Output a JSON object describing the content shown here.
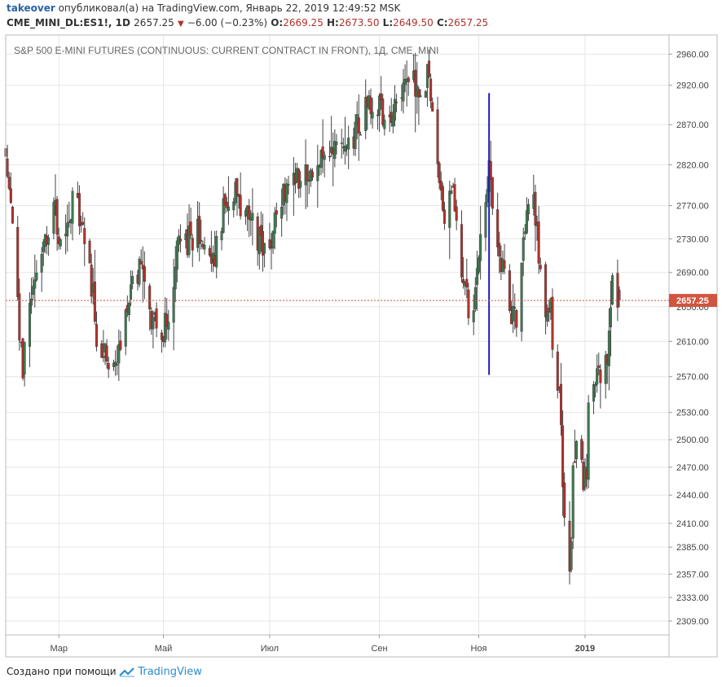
{
  "header": {
    "author": "takeover",
    "published_text": "опубликовал(а) на TradingView.com, Январь 22, 2019 12:49:52 MSK",
    "symbol": "CME_MINI_DL:ES1!, 1D",
    "last": "2657.25",
    "change": "−6.00 (−0.23%)",
    "open_label": "O:",
    "open": "2669.25",
    "high_label": "H:",
    "high": "2673.50",
    "low_label": "L:",
    "low": "2649.50",
    "close_label": "C:",
    "close": "2657.25"
  },
  "footer": {
    "created_with": "Создано при помощи",
    "brand": "TradingView"
  },
  "colors": {
    "up": "#3d7a4f",
    "down": "#b2322a",
    "marker_line": "#1f1fb4",
    "price_tag": "#d0553f",
    "grid": "#e6e6e6"
  },
  "chart_data": {
    "type": "candlestick",
    "title": "S&P 500 E-MINI FUTURES (CONTINUOUS: CURRENT CONTRACT IN FRONT), 1Д, CME_MINI",
    "y_ticks": [
      "2960.00",
      "2920.00",
      "2870.00",
      "2820.00",
      "2770.00",
      "2730.00",
      "2690.00",
      "2650.00",
      "2610.00",
      "2570.00",
      "2530.00",
      "2500.00",
      "2470.00",
      "2440.00",
      "2410.00",
      "2385.00",
      "2357.00",
      "2333.00",
      "2309.00"
    ],
    "x_ticks": [
      "Мар",
      "Май",
      "Июл",
      "Сен",
      "Ноя",
      "2019"
    ],
    "current_price": "2657.25",
    "ylim": [
      2295,
      2985
    ],
    "scale": "log",
    "grid": true,
    "vertical_marker_date": "2018-11-07",
    "vertical_marker_range": [
      2572,
      2910
    ],
    "close_points": [
      [
        "2018-01-29",
        2830
      ],
      [
        "2018-02-02",
        2760
      ],
      [
        "2018-02-05",
        2650
      ],
      [
        "2018-02-08",
        2580
      ],
      [
        "2018-02-12",
        2650
      ],
      [
        "2018-02-20",
        2715
      ],
      [
        "2018-02-26",
        2780
      ],
      [
        "2018-03-01",
        2715
      ],
      [
        "2018-03-09",
        2780
      ],
      [
        "2018-03-13",
        2760
      ],
      [
        "2018-03-22",
        2650
      ],
      [
        "2018-03-23",
        2595
      ],
      [
        "2018-04-02",
        2585
      ],
      [
        "2018-04-09",
        2640
      ],
      [
        "2018-04-18",
        2710
      ],
      [
        "2018-04-24",
        2640
      ],
      [
        "2018-05-02",
        2625
      ],
      [
        "2018-05-10",
        2725
      ],
      [
        "2018-05-21",
        2735
      ],
      [
        "2018-05-29",
        2690
      ],
      [
        "2018-06-06",
        2770
      ],
      [
        "2018-06-12",
        2785
      ],
      [
        "2018-06-19",
        2760
      ],
      [
        "2018-06-28",
        2715
      ],
      [
        "2018-07-02",
        2725
      ],
      [
        "2018-07-09",
        2785
      ],
      [
        "2018-07-19",
        2805
      ],
      [
        "2018-07-27",
        2820
      ],
      [
        "2018-08-10",
        2835
      ],
      [
        "2018-08-13",
        2830
      ],
      [
        "2018-08-21",
        2860
      ],
      [
        "2018-08-31",
        2905
      ],
      [
        "2018-09-07",
        2875
      ],
      [
        "2018-09-14",
        2905
      ],
      [
        "2018-09-20",
        2935
      ],
      [
        "2018-09-28",
        2915
      ],
      [
        "2018-10-03",
        2930
      ],
      [
        "2018-10-05",
        2890
      ],
      [
        "2018-10-10",
        2790
      ],
      [
        "2018-10-11",
        2760
      ],
      [
        "2018-10-17",
        2800
      ],
      [
        "2018-10-24",
        2660
      ],
      [
        "2018-10-29",
        2640
      ],
      [
        "2018-11-02",
        2720
      ],
      [
        "2018-11-07",
        2815
      ],
      [
        "2018-11-12",
        2730
      ],
      [
        "2018-11-20",
        2640
      ],
      [
        "2018-11-23",
        2630
      ],
      [
        "2018-11-28",
        2745
      ],
      [
        "2018-12-03",
        2795
      ],
      [
        "2018-12-06",
        2700
      ],
      [
        "2018-12-10",
        2640
      ],
      [
        "2018-12-13",
        2655
      ],
      [
        "2018-12-14",
        2600
      ],
      [
        "2018-12-18",
        2545
      ],
      [
        "2018-12-21",
        2420
      ],
      [
        "2018-12-24",
        2350
      ],
      [
        "2018-12-26",
        2465
      ],
      [
        "2018-12-28",
        2485
      ],
      [
        "2019-01-03",
        2450
      ],
      [
        "2019-01-04",
        2530
      ],
      [
        "2019-01-09",
        2580
      ],
      [
        "2019-01-14",
        2580
      ],
      [
        "2019-01-17",
        2640
      ],
      [
        "2019-01-18",
        2670
      ],
      [
        "2019-01-22",
        2657.25
      ]
    ]
  }
}
